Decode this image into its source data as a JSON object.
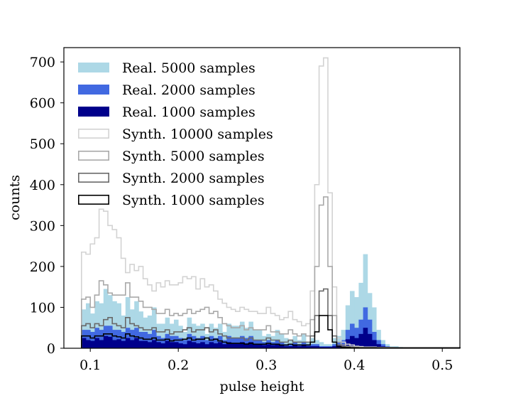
{
  "chart_data": {
    "type": "histogram",
    "title": "",
    "xlabel": "pulse height",
    "ylabel": "counts",
    "xlim": [
      0.07,
      0.52
    ],
    "ylim": [
      0,
      735
    ],
    "xticks": [
      0.1,
      0.2,
      0.3,
      0.4,
      0.5
    ],
    "xtick_labels": [
      "0.1",
      "0.2",
      "0.3",
      "0.4",
      "0.5"
    ],
    "yticks": [
      0,
      100,
      200,
      300,
      400,
      500,
      600,
      700
    ],
    "ytick_labels": [
      "0",
      "100",
      "200",
      "300",
      "400",
      "500",
      "600",
      "700"
    ],
    "bin_start": 0.09,
    "bin_width": 0.005,
    "legend_position": "upper-left",
    "series": [
      {
        "name": "Real. 5000 samples",
        "style": "filled",
        "color": "#add8e6",
        "values": [
          95,
          110,
          85,
          115,
          110,
          145,
          130,
          115,
          110,
          80,
          125,
          95,
          115,
          90,
          75,
          80,
          100,
          60,
          60,
          75,
          60,
          70,
          55,
          40,
          75,
          60,
          55,
          60,
          35,
          60,
          50,
          60,
          40,
          60,
          55,
          55,
          65,
          50,
          65,
          45,
          45,
          30,
          35,
          30,
          45,
          35,
          25,
          20,
          30,
          20,
          35,
          15,
          25,
          20,
          15,
          10,
          10,
          25,
          30,
          45,
          105,
          140,
          125,
          160,
          230,
          135,
          100,
          45,
          20,
          10,
          5,
          5,
          3,
          2,
          2,
          2,
          2,
          1,
          1,
          1,
          1,
          1,
          1,
          1,
          1,
          1
        ]
      },
      {
        "name": "Real. 2000 samples",
        "style": "filled",
        "color": "#4169e1",
        "values": [
          45,
          45,
          40,
          50,
          45,
          55,
          55,
          45,
          45,
          40,
          50,
          45,
          50,
          40,
          40,
          35,
          45,
          30,
          25,
          35,
          30,
          30,
          25,
          20,
          35,
          30,
          25,
          30,
          20,
          30,
          25,
          30,
          20,
          30,
          25,
          25,
          30,
          25,
          30,
          20,
          20,
          15,
          20,
          15,
          20,
          15,
          10,
          10,
          15,
          10,
          15,
          10,
          10,
          10,
          5,
          5,
          5,
          10,
          15,
          20,
          45,
          60,
          50,
          70,
          100,
          70,
          40,
          20,
          10,
          5,
          2,
          2,
          1,
          1,
          1,
          1,
          1,
          1,
          1,
          1,
          1,
          1,
          1,
          1,
          1,
          1
        ]
      },
      {
        "name": "Real. 1000 samples",
        "style": "filled",
        "color": "#00008b",
        "values": [
          25,
          20,
          18,
          25,
          20,
          30,
          28,
          20,
          22,
          18,
          25,
          20,
          25,
          18,
          18,
          15,
          20,
          15,
          12,
          18,
          15,
          15,
          12,
          10,
          18,
          15,
          12,
          15,
          10,
          15,
          12,
          15,
          10,
          15,
          12,
          12,
          15,
          12,
          15,
          10,
          10,
          8,
          10,
          8,
          10,
          8,
          5,
          5,
          8,
          5,
          8,
          5,
          5,
          5,
          3,
          3,
          3,
          5,
          8,
          10,
          22,
          30,
          25,
          35,
          50,
          35,
          20,
          10,
          5,
          3,
          1,
          1,
          1,
          1,
          1,
          1,
          1,
          1,
          1,
          1,
          1,
          1,
          1,
          1,
          1,
          1
        ]
      },
      {
        "name": "Synth. 10000 samples",
        "style": "step",
        "color": "#d3d3d3",
        "values": [
          235,
          230,
          255,
          270,
          340,
          335,
          300,
          290,
          270,
          220,
          185,
          205,
          190,
          200,
          170,
          155,
          140,
          160,
          150,
          165,
          155,
          155,
          160,
          175,
          170,
          175,
          145,
          170,
          150,
          155,
          140,
          120,
          110,
          100,
          95,
          90,
          100,
          95,
          90,
          90,
          85,
          85,
          100,
          85,
          80,
          70,
          75,
          90,
          70,
          65,
          55,
          60,
          140,
          400,
          690,
          710,
          380,
          150,
          25,
          15,
          10,
          8,
          5,
          4,
          3,
          3,
          3,
          2,
          2,
          2,
          2,
          1,
          1,
          1,
          1,
          1,
          1,
          1,
          1,
          1,
          1,
          1,
          1,
          1,
          1,
          1
        ]
      },
      {
        "name": "Synth. 5000 samples",
        "style": "step",
        "color": "#a9a9a9",
        "values": [
          120,
          125,
          100,
          130,
          165,
          155,
          135,
          130,
          130,
          130,
          160,
          125,
          125,
          115,
          100,
          100,
          95,
          85,
          85,
          95,
          80,
          85,
          80,
          85,
          95,
          85,
          90,
          95,
          100,
          85,
          90,
          75,
          60,
          55,
          50,
          50,
          55,
          45,
          50,
          45,
          45,
          45,
          55,
          40,
          40,
          35,
          35,
          45,
          35,
          30,
          35,
          30,
          70,
          200,
          350,
          370,
          200,
          80,
          15,
          8,
          5,
          4,
          3,
          2,
          2,
          2,
          2,
          1,
          1,
          1,
          1,
          1,
          1,
          1,
          1,
          1,
          1,
          1,
          1,
          1,
          1,
          1,
          1,
          1,
          1,
          1
        ]
      },
      {
        "name": "Synth. 2000 samples",
        "style": "step",
        "color": "#696969",
        "values": [
          55,
          60,
          50,
          60,
          55,
          70,
          75,
          60,
          55,
          50,
          75,
          60,
          55,
          50,
          45,
          45,
          50,
          40,
          40,
          45,
          35,
          40,
          40,
          45,
          50,
          40,
          45,
          45,
          50,
          40,
          45,
          35,
          30,
          25,
          25,
          25,
          25,
          20,
          25,
          20,
          20,
          20,
          25,
          20,
          20,
          15,
          15,
          20,
          15,
          15,
          15,
          15,
          30,
          80,
          140,
          145,
          80,
          30,
          8,
          4,
          3,
          2,
          2,
          1,
          1,
          1,
          1,
          1,
          1,
          1,
          1,
          1,
          1,
          1,
          1,
          1,
          1,
          1,
          1,
          1,
          1,
          1,
          1,
          1,
          1,
          1
        ]
      },
      {
        "name": "Synth. 1000 samples",
        "style": "step",
        "color": "#000000",
        "values": [
          30,
          30,
          25,
          30,
          30,
          35,
          35,
          30,
          28,
          25,
          35,
          30,
          28,
          25,
          22,
          22,
          25,
          20,
          20,
          22,
          18,
          20,
          20,
          22,
          25,
          20,
          22,
          22,
          25,
          20,
          22,
          18,
          15,
          12,
          12,
          12,
          12,
          10,
          12,
          10,
          10,
          10,
          12,
          10,
          10,
          8,
          8,
          10,
          8,
          8,
          8,
          8,
          15,
          40,
          80,
          80,
          45,
          15,
          4,
          2,
          2,
          1,
          1,
          1,
          1,
          1,
          1,
          1,
          1,
          1,
          1,
          1,
          1,
          1,
          1,
          1,
          1,
          1,
          1,
          1,
          1,
          1,
          1,
          1,
          1,
          1
        ]
      }
    ]
  }
}
